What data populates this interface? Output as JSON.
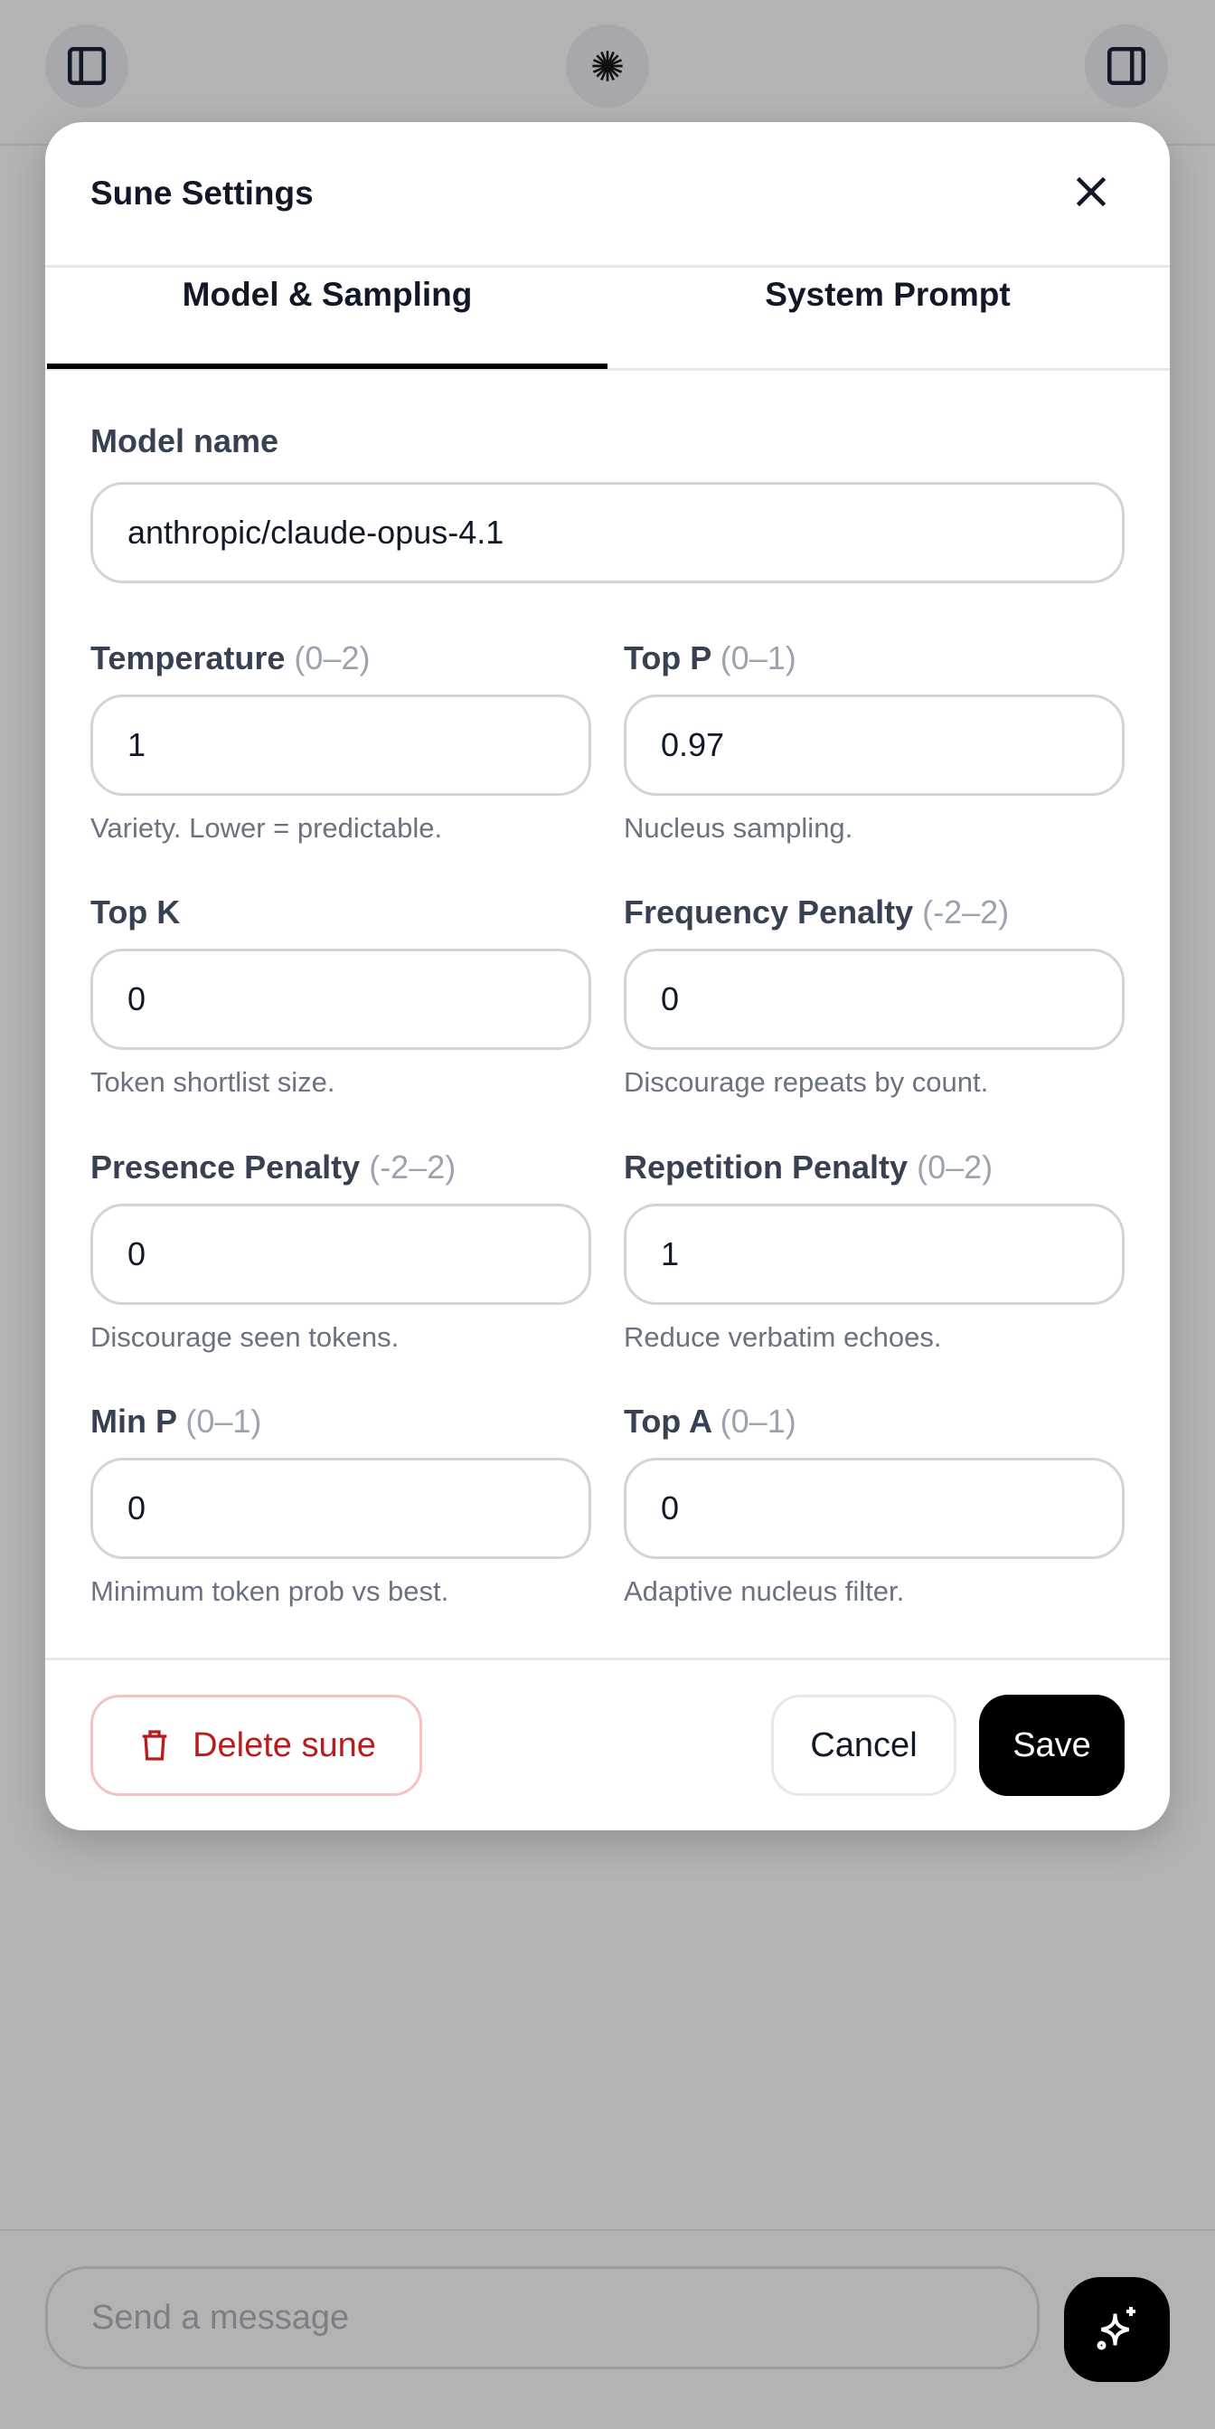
{
  "topbar": {
    "left_icon": "sidebar-left-icon",
    "center_icon": "sunburst-logo-icon",
    "right_icon": "sidebar-right-icon"
  },
  "modal": {
    "title": "Sune Settings",
    "close_icon": "close-icon",
    "tabs": [
      {
        "label": "Model & Sampling",
        "active": true
      },
      {
        "label": "System Prompt",
        "active": false
      }
    ],
    "model_name": {
      "label": "Model name",
      "value": "anthropic/claude-opus-4.1"
    },
    "fields": [
      {
        "label": "Temperature",
        "range": "(0–2)",
        "value": "1",
        "help": "Variety. Lower = predictable."
      },
      {
        "label": "Top P",
        "range": "(0–1)",
        "value": "0.97",
        "help": "Nucleus sampling."
      },
      {
        "label": "Top K",
        "range": "",
        "value": "0",
        "help": "Token shortlist size."
      },
      {
        "label": "Frequency Penalty",
        "range": "(-2–2)",
        "value": "0",
        "help": "Discourage repeats by count."
      },
      {
        "label": "Presence Penalty",
        "range": "(-2–2)",
        "value": "0",
        "help": "Discourage seen tokens."
      },
      {
        "label": "Repetition Penalty",
        "range": "(0–2)",
        "value": "1",
        "help": "Reduce verbatim echoes."
      },
      {
        "label": "Min P",
        "range": "(0–1)",
        "value": "0",
        "help": "Minimum token prob vs best."
      },
      {
        "label": "Top A",
        "range": "(0–1)",
        "value": "0",
        "help": "Adaptive nucleus filter."
      }
    ],
    "footer": {
      "delete_label": "Delete sune",
      "delete_icon": "trash-icon",
      "cancel_label": "Cancel",
      "save_label": "Save"
    }
  },
  "composer": {
    "placeholder": "Send a message",
    "send_icon": "sparkles-icon"
  },
  "colors": {
    "danger": "#b91c1c",
    "primary": "#000000",
    "overlay": "#b3b3b3"
  }
}
